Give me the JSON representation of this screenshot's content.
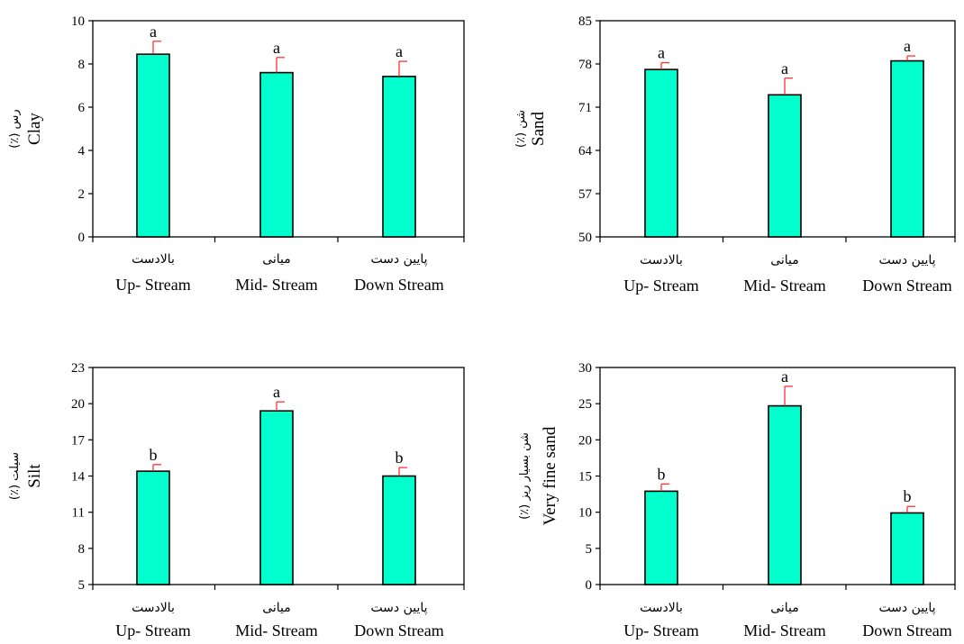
{
  "chart_data": [
    {
      "type": "bar",
      "categories": [
        {
          "fa": "بالادست",
          "en": "Up- Stream"
        },
        {
          "fa": "میانی",
          "en": "Mid- Stream"
        },
        {
          "fa": "پایین دست",
          "en": "Down Stream"
        }
      ],
      "ylabel": {
        "en": "Clay",
        "fa": "رس (٪)"
      },
      "ylim": [
        0,
        10
      ],
      "yticks": [
        0,
        2,
        4,
        6,
        8,
        10
      ],
      "values": [
        8.45,
        7.6,
        7.42
      ],
      "errors": [
        0.6,
        0.7,
        0.7
      ],
      "significance": [
        "a",
        "a",
        "a"
      ],
      "bar_color": "#00FFCC",
      "error_color": "#FF3333"
    },
    {
      "type": "bar",
      "categories": [
        {
          "fa": "بالادست",
          "en": "Up- Stream"
        },
        {
          "fa": "میانی",
          "en": "Mid- Stream"
        },
        {
          "fa": "پایین دست",
          "en": "Down Stream"
        }
      ],
      "ylabel": {
        "en": "Sand",
        "fa": "شن (٪)"
      },
      "ylim": [
        50,
        85
      ],
      "yticks": [
        50,
        57,
        64,
        71,
        78,
        85
      ],
      "values": [
        77.1,
        73.0,
        78.5
      ],
      "errors": [
        1.1,
        2.7,
        0.8
      ],
      "significance": [
        "a",
        "a",
        "a"
      ],
      "bar_color": "#00FFCC",
      "error_color": "#FF3333"
    },
    {
      "type": "bar",
      "categories": [
        {
          "fa": "بالادست",
          "en": "Up- Stream"
        },
        {
          "fa": "میانی",
          "en": "Mid- Stream"
        },
        {
          "fa": "پایین دست",
          "en": "Down Stream"
        }
      ],
      "ylabel": {
        "en": "Silt",
        "fa": "سیلت (٪)"
      },
      "ylim": [
        5,
        23
      ],
      "yticks": [
        5,
        8,
        11,
        14,
        17,
        20,
        23
      ],
      "values": [
        14.4,
        19.4,
        14.0
      ],
      "errors": [
        0.55,
        0.75,
        0.7
      ],
      "significance": [
        "b",
        "a",
        "b"
      ],
      "bar_color": "#00FFCC",
      "error_color": "#FF3333"
    },
    {
      "type": "bar",
      "categories": [
        {
          "fa": "بالادست",
          "en": "Up- Stream"
        },
        {
          "fa": "میانی",
          "en": "Mid- Stream"
        },
        {
          "fa": "پایین دست",
          "en": "Down Stream"
        }
      ],
      "ylabel": {
        "en": "Very  fine sand",
        "fa": "شن بسیار ریز (٪)"
      },
      "ylim": [
        0,
        30
      ],
      "yticks": [
        0,
        5,
        10,
        15,
        20,
        25,
        30
      ],
      "values": [
        12.9,
        24.7,
        9.9
      ],
      "errors": [
        1.0,
        2.7,
        0.9
      ],
      "significance": [
        "b",
        "a",
        "b"
      ],
      "bar_color": "#00FFCC",
      "error_color": "#FF3333"
    }
  ]
}
